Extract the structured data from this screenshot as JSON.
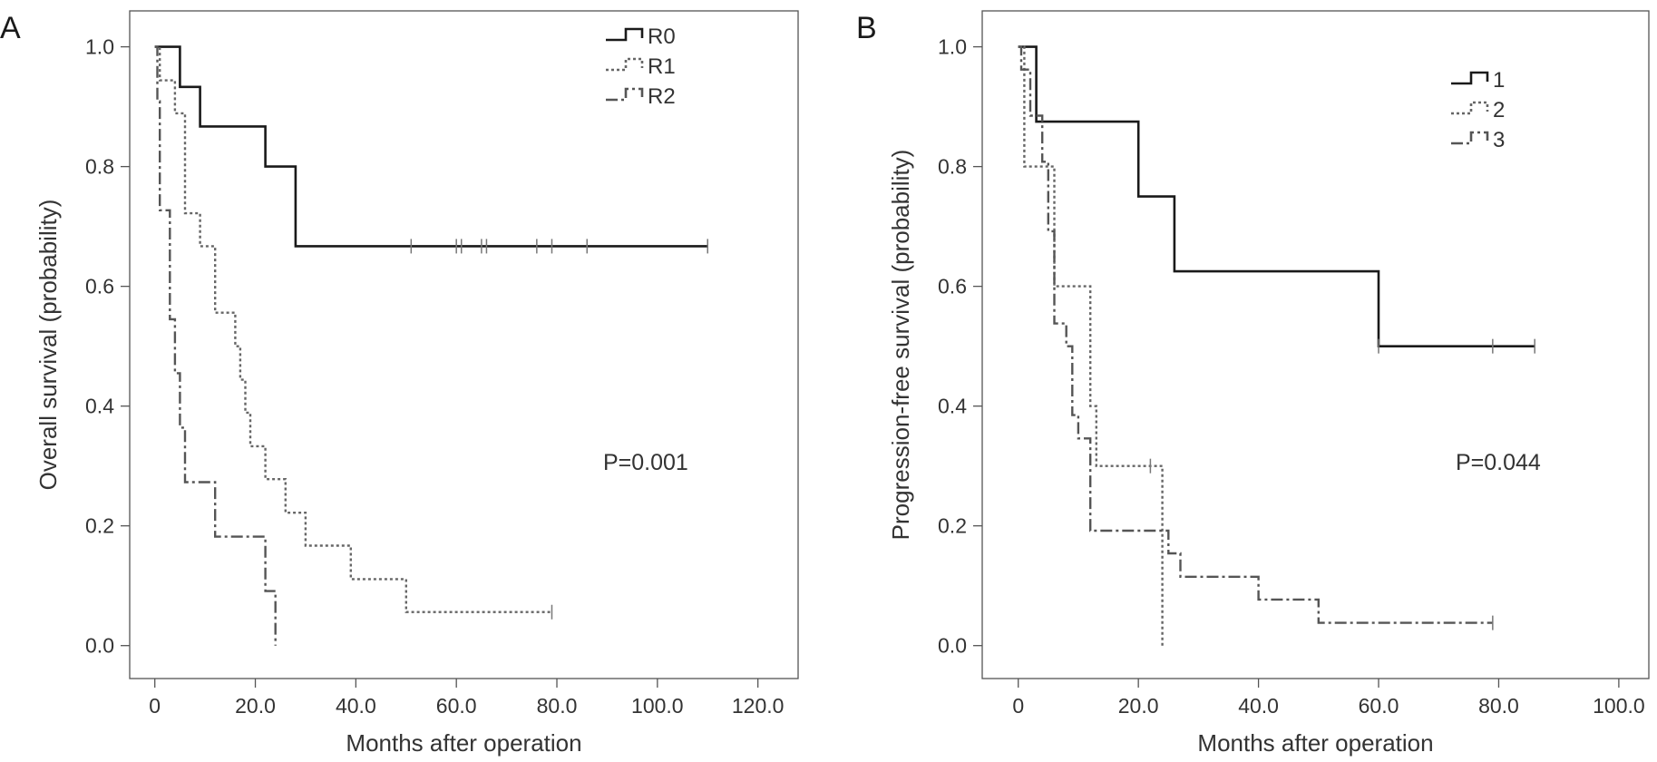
{
  "chart_data": [
    {
      "panel": "A",
      "type": "line",
      "step": true,
      "xlabel": "Months after operation",
      "ylabel": "Overall survival (probability)",
      "xlim": [
        -5,
        128
      ],
      "ylim": [
        -0.055,
        1.06
      ],
      "xticks": [
        0,
        20,
        40,
        60,
        80,
        100,
        120
      ],
      "xtick_labels": [
        "0",
        "20.0",
        "40.0",
        "60.0",
        "80.0",
        "100.0",
        "120.0"
      ],
      "yticks": [
        0,
        0.2,
        0.4,
        0.6,
        0.8,
        1.0
      ],
      "ytick_labels": [
        "0.0",
        "0.2",
        "0.4",
        "0.6",
        "0.8",
        "1.0"
      ],
      "grid": false,
      "legend_position": "top-right",
      "annotation": "P=0.001",
      "series": [
        {
          "name": "R0",
          "style": "solid",
          "color": "#1a1a1a",
          "points": [
            [
              0,
              1.0
            ],
            [
              5,
              1.0
            ],
            [
              5,
              0.933
            ],
            [
              9,
              0.933
            ],
            [
              9,
              0.867
            ],
            [
              22,
              0.867
            ],
            [
              22,
              0.8
            ],
            [
              28,
              0.8
            ],
            [
              28,
              0.667
            ],
            [
              110,
              0.667
            ]
          ],
          "censors": [
            [
              51,
              0.667
            ],
            [
              60,
              0.667
            ],
            [
              61,
              0.667
            ],
            [
              65,
              0.667
            ],
            [
              66,
              0.667
            ],
            [
              76,
              0.667
            ],
            [
              79,
              0.667
            ],
            [
              86,
              0.667
            ],
            [
              110,
              0.667
            ]
          ]
        },
        {
          "name": "R1",
          "style": "dotted",
          "color": "#666666",
          "points": [
            [
              0,
              1.0
            ],
            [
              1,
              1.0
            ],
            [
              1,
              0.944
            ],
            [
              4,
              0.944
            ],
            [
              4,
              0.889
            ],
            [
              6,
              0.889
            ],
            [
              6,
              0.722
            ],
            [
              9,
              0.722
            ],
            [
              9,
              0.667
            ],
            [
              12,
              0.667
            ],
            [
              12,
              0.556
            ],
            [
              16,
              0.556
            ],
            [
              16,
              0.5
            ],
            [
              17,
              0.5
            ],
            [
              17,
              0.444
            ],
            [
              18,
              0.444
            ],
            [
              18,
              0.389
            ],
            [
              19,
              0.389
            ],
            [
              19,
              0.333
            ],
            [
              22,
              0.333
            ],
            [
              22,
              0.278
            ],
            [
              26,
              0.278
            ],
            [
              26,
              0.222
            ],
            [
              30,
              0.222
            ],
            [
              30,
              0.167
            ],
            [
              39,
              0.167
            ],
            [
              39,
              0.111
            ],
            [
              50,
              0.111
            ],
            [
              50,
              0.056
            ],
            [
              79,
              0.056
            ]
          ],
          "censors": [
            [
              79,
              0.056
            ]
          ]
        },
        {
          "name": "R2",
          "style": "dashdot",
          "color": "#555555",
          "points": [
            [
              0,
              1.0
            ],
            [
              0.5,
              1.0
            ],
            [
              0.5,
              0.909
            ],
            [
              1,
              0.909
            ],
            [
              1,
              0.727
            ],
            [
              3,
              0.727
            ],
            [
              3,
              0.545
            ],
            [
              4,
              0.545
            ],
            [
              4,
              0.455
            ],
            [
              5,
              0.455
            ],
            [
              5,
              0.364
            ],
            [
              6,
              0.364
            ],
            [
              6,
              0.273
            ],
            [
              12,
              0.273
            ],
            [
              12,
              0.182
            ],
            [
              22,
              0.182
            ],
            [
              22,
              0.091
            ],
            [
              24,
              0.091
            ],
            [
              24,
              0.0
            ]
          ],
          "censors": []
        }
      ]
    },
    {
      "panel": "B",
      "type": "line",
      "step": true,
      "xlabel": "Months after operation",
      "ylabel": "Progression-free survival (probability)",
      "xlim": [
        -6,
        105
      ],
      "ylim": [
        -0.055,
        1.06
      ],
      "xticks": [
        0,
        20,
        40,
        60,
        80,
        100
      ],
      "xtick_labels": [
        "0",
        "20.0",
        "40.0",
        "60.0",
        "80.0",
        "100.0"
      ],
      "yticks": [
        0,
        0.2,
        0.4,
        0.6,
        0.8,
        1.0
      ],
      "ytick_labels": [
        "0.0",
        "0.2",
        "0.4",
        "0.6",
        "0.8",
        "1.0"
      ],
      "grid": false,
      "legend_position": "top-right",
      "annotation": "P=0.044",
      "series": [
        {
          "name": "1",
          "style": "solid",
          "color": "#1a1a1a",
          "points": [
            [
              0,
              1.0
            ],
            [
              3,
              1.0
            ],
            [
              3,
              0.875
            ],
            [
              20,
              0.875
            ],
            [
              20,
              0.75
            ],
            [
              26,
              0.75
            ],
            [
              26,
              0.625
            ],
            [
              60,
              0.625
            ],
            [
              60,
              0.5
            ],
            [
              86,
              0.5
            ]
          ],
          "censors": [
            [
              60,
              0.5
            ],
            [
              79,
              0.5
            ],
            [
              86,
              0.5
            ]
          ]
        },
        {
          "name": "2",
          "style": "dotted",
          "color": "#666666",
          "points": [
            [
              0,
              1.0
            ],
            [
              1,
              1.0
            ],
            [
              1,
              0.8
            ],
            [
              6,
              0.8
            ],
            [
              6,
              0.6
            ],
            [
              12,
              0.6
            ],
            [
              12,
              0.4
            ],
            [
              13,
              0.4
            ],
            [
              13,
              0.3
            ],
            [
              24,
              0.3
            ],
            [
              24,
              0.0
            ]
          ],
          "censors": [
            [
              22,
              0.3
            ]
          ]
        },
        {
          "name": "3",
          "style": "dashdot",
          "color": "#555555",
          "points": [
            [
              0,
              1.0
            ],
            [
              0.5,
              1.0
            ],
            [
              0.5,
              0.962
            ],
            [
              2,
              0.962
            ],
            [
              2,
              0.885
            ],
            [
              4,
              0.885
            ],
            [
              4,
              0.808
            ],
            [
              5,
              0.808
            ],
            [
              5,
              0.692
            ],
            [
              6,
              0.692
            ],
            [
              6,
              0.538
            ],
            [
              8,
              0.538
            ],
            [
              8,
              0.5
            ],
            [
              9,
              0.5
            ],
            [
              9,
              0.385
            ],
            [
              10,
              0.385
            ],
            [
              10,
              0.346
            ],
            [
              12,
              0.346
            ],
            [
              12,
              0.192
            ],
            [
              25,
              0.192
            ],
            [
              25,
              0.154
            ],
            [
              27,
              0.154
            ],
            [
              27,
              0.115
            ],
            [
              40,
              0.115
            ],
            [
              40,
              0.077
            ],
            [
              50,
              0.077
            ],
            [
              50,
              0.038
            ],
            [
              79,
              0.038
            ]
          ],
          "censors": [
            [
              79,
              0.038
            ]
          ]
        }
      ]
    }
  ]
}
